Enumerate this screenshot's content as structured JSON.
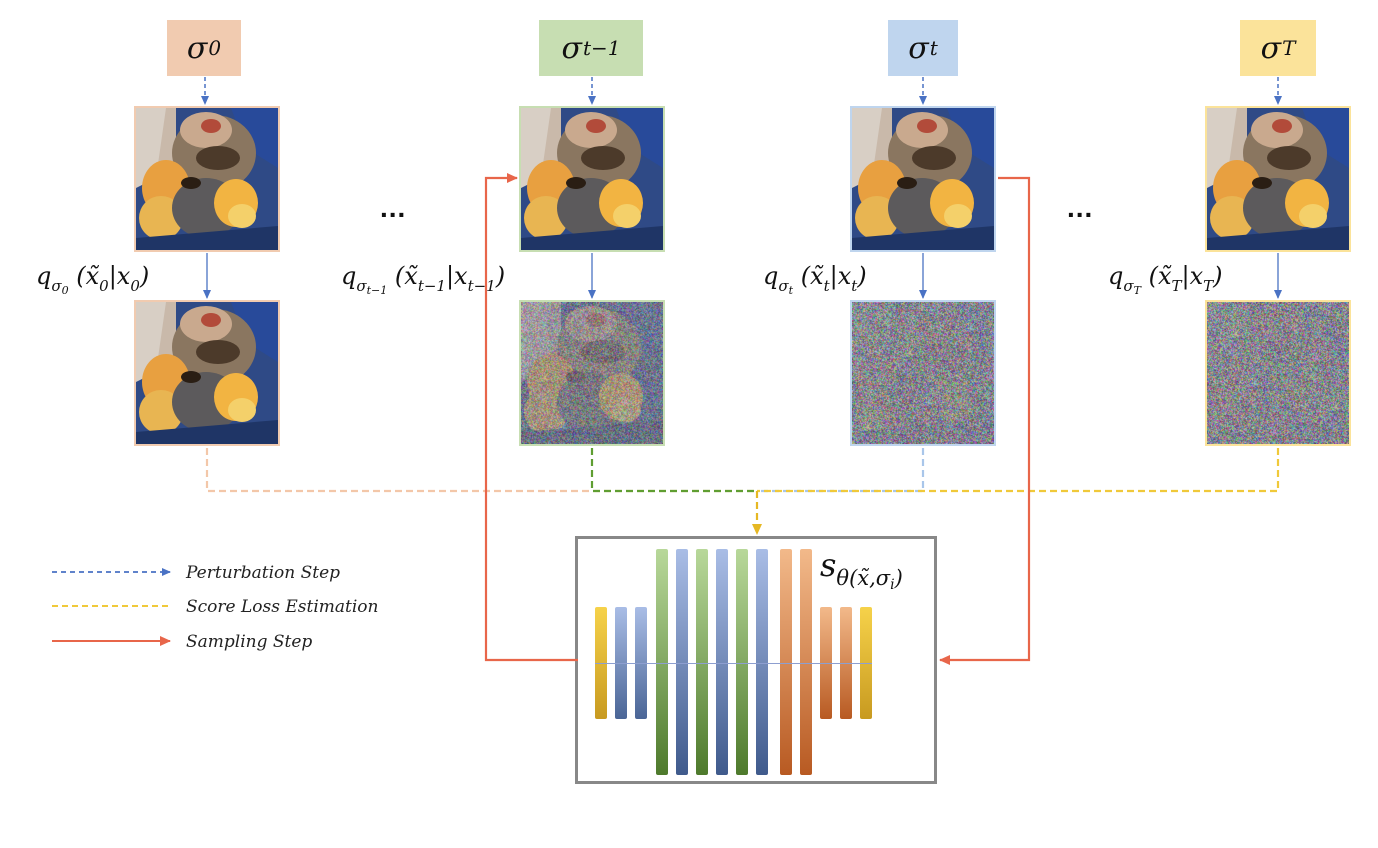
{
  "sigmas": [
    {
      "base": "σ",
      "sub": "0",
      "color": "#f1cbb0"
    },
    {
      "base": "σ",
      "sub": "t−1",
      "color": "#c7deb2"
    },
    {
      "base": "σ",
      "sub": "t",
      "color": "#bfd5ee"
    },
    {
      "base": "σ",
      "sub": "T",
      "color": "#fbe39a"
    }
  ],
  "q_labels": [
    {
      "q": "q",
      "sub": "σ",
      "subsub": "0",
      "args": "(x̃",
      "arg_sub": "0",
      "bar": "|x",
      "bar_sub": "0",
      "close": ")"
    },
    {
      "q": "q",
      "sub": "σ",
      "subsub": "t−1",
      "args": "(x̃",
      "arg_sub": "t−1",
      "bar": "|x",
      "bar_sub": "t−1",
      "close": ")"
    },
    {
      "q": "q",
      "sub": "σ",
      "subsub": "t",
      "args": "(x̃",
      "arg_sub": "t",
      "bar": "|x",
      "bar_sub": "t",
      "close": ")"
    },
    {
      "q": "q",
      "sub": "σ",
      "subsub": "T",
      "args": "(x̃",
      "arg_sub": "T",
      "bar": "|x",
      "bar_sub": "T",
      "close": ")"
    }
  ],
  "ellipsis": "...",
  "noise_levels": [
    0.0,
    0.72,
    0.95,
    0.97
  ],
  "legend": {
    "perturbation": "Perturbation Step",
    "score_loss": "Score Loss Estimation",
    "sampling": "Sampling Step"
  },
  "score_model": {
    "s": "s",
    "theta": "θ",
    "args": "(x̃,σ",
    "args_sub": "i",
    "close": ")"
  },
  "colors": {
    "perturbation": "#4a72c4",
    "score_loss": "#f0c93a",
    "sampling": "#e8664a",
    "tile0": "#f1cbb0",
    "tile1": "#c7deb2",
    "tile2": "#bfd5ee",
    "tile3": "#fbe39a"
  }
}
